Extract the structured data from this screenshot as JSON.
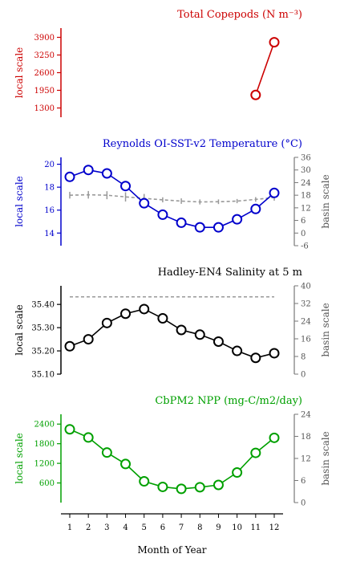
{
  "chart_data": [
    {
      "type": "line",
      "title": "Total Copepods (N m⁻³)",
      "color": "#cc0000",
      "ylabel": "local scale",
      "ylim": [
        960,
        4240
      ],
      "yticks": [
        1300,
        1950,
        2600,
        3250,
        3900
      ],
      "x": [
        11,
        12
      ],
      "values": [
        1780,
        3720
      ]
    },
    {
      "type": "line",
      "title": "Reynolds OI-SST-v2 Temperature (°C)",
      "color": "#0000cc",
      "ylabel": "local scale",
      "y2label": "basin scale",
      "ylim": [
        12.9,
        20.6
      ],
      "yticks": [
        14,
        16,
        18,
        20
      ],
      "y2lim": [
        -6,
        36
      ],
      "y2ticks": [
        -6,
        0,
        6,
        12,
        18,
        24,
        30,
        36
      ],
      "x": [
        1,
        2,
        3,
        4,
        5,
        6,
        7,
        8,
        9,
        10,
        11,
        12
      ],
      "values": [
        18.9,
        19.5,
        19.2,
        18.1,
        16.6,
        15.6,
        14.9,
        14.5,
        14.5,
        15.2,
        16.1,
        17.5
      ],
      "basin": [
        18.0,
        18.2,
        18.0,
        17.2,
        16.5,
        15.8,
        15.2,
        14.8,
        14.9,
        15.2,
        16.0,
        16.9
      ],
      "basin_err": [
        1.6,
        1.8,
        1.9,
        2.2,
        2.1,
        1.2,
        1.3,
        1.2,
        1.1,
        1.0,
        1.1,
        1.5
      ]
    },
    {
      "type": "line",
      "title": "Hadley-EN4 Salinity at 5 m",
      "color": "#000000",
      "ylabel": "local scale",
      "y2label": "basin scale",
      "ylim": [
        35.1,
        35.48
      ],
      "yticks": [
        35.1,
        35.2,
        35.3,
        35.4
      ],
      "ytick_labels": [
        "35.10",
        "35.20",
        "35.30",
        "35.40"
      ],
      "y2lim": [
        0,
        40
      ],
      "y2ticks": [
        0,
        8,
        16,
        24,
        32,
        40
      ],
      "x": [
        1,
        2,
        3,
        4,
        5,
        6,
        7,
        8,
        9,
        10,
        11,
        12
      ],
      "values": [
        35.22,
        35.25,
        35.32,
        35.36,
        35.38,
        35.34,
        35.29,
        35.27,
        35.24,
        35.2,
        35.17,
        35.19
      ],
      "basin": [
        35.0,
        35.0,
        35.0,
        35.0,
        35.0,
        35.0,
        35.0,
        35.0,
        35.0,
        35.0,
        35.0,
        35.0
      ]
    },
    {
      "type": "line",
      "title": "CbPM2 NPP (mg-C/m2/day)",
      "color": "#00a000",
      "ylabel": "local scale",
      "y2label": "basin scale",
      "xlabel": "Month of Year",
      "ylim": [
        0,
        2700
      ],
      "yticks": [
        600,
        1200,
        1800,
        2400
      ],
      "y2lim": [
        0,
        24
      ],
      "y2ticks": [
        0,
        6,
        12,
        18,
        24
      ],
      "x": [
        1,
        2,
        3,
        4,
        5,
        6,
        7,
        8,
        9,
        10,
        11,
        12
      ],
      "xticks": [
        1,
        2,
        3,
        4,
        5,
        6,
        7,
        8,
        9,
        10,
        11,
        12
      ],
      "values": [
        2240,
        1990,
        1530,
        1180,
        650,
        480,
        420,
        470,
        540,
        920,
        1520,
        1980
      ]
    }
  ]
}
